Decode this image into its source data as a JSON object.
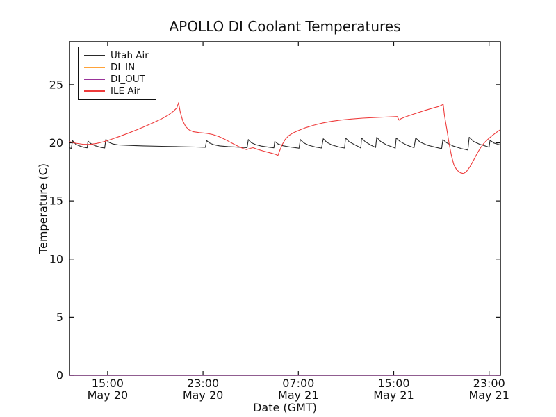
{
  "chart_data": {
    "type": "line",
    "title": "APOLLO DI Coolant Temperatures",
    "xlabel": "Date (GMT)",
    "ylabel": "Temperature (C)",
    "grid": false,
    "legend_position": "upper left",
    "axis_color": "#111111",
    "xlim_hours_from_may20_0000": [
      11.8,
      47.95
    ],
    "ylim": [
      0,
      28.7
    ],
    "y_ticks": [
      0,
      5,
      10,
      15,
      20,
      25
    ],
    "x_ticks": [
      {
        "hours": 15,
        "time": "15:00",
        "date": "May 20"
      },
      {
        "hours": 23,
        "time": "23:00",
        "date": "May 20"
      },
      {
        "hours": 31,
        "time": "07:00",
        "date": "May 21"
      },
      {
        "hours": 39,
        "time": "15:00",
        "date": "May 21"
      },
      {
        "hours": 47,
        "time": "23:00",
        "date": "May 21"
      }
    ],
    "series": [
      {
        "name": "Utah Air",
        "color": "#2a2a2a",
        "points": [
          [
            11.8,
            19.6
          ],
          [
            11.95,
            19.5
          ],
          [
            12.05,
            20.2
          ],
          [
            12.3,
            19.9
          ],
          [
            12.6,
            19.75
          ],
          [
            12.95,
            19.63
          ],
          [
            13.28,
            19.57
          ],
          [
            13.35,
            20.15
          ],
          [
            13.6,
            19.92
          ],
          [
            13.95,
            19.75
          ],
          [
            14.4,
            19.62
          ],
          [
            14.75,
            19.55
          ],
          [
            14.85,
            20.3
          ],
          [
            15.1,
            20.05
          ],
          [
            15.45,
            19.9
          ],
          [
            15.9,
            19.82
          ],
          [
            16.8,
            19.78
          ],
          [
            18.0,
            19.74
          ],
          [
            19.5,
            19.7
          ],
          [
            21.0,
            19.67
          ],
          [
            22.4,
            19.64
          ],
          [
            23.2,
            19.62
          ],
          [
            23.3,
            20.2
          ],
          [
            23.55,
            19.98
          ],
          [
            23.9,
            19.84
          ],
          [
            24.4,
            19.74
          ],
          [
            25.1,
            19.68
          ],
          [
            25.9,
            19.63
          ],
          [
            26.7,
            19.58
          ],
          [
            26.8,
            20.28
          ],
          [
            27.05,
            20.02
          ],
          [
            27.4,
            19.85
          ],
          [
            27.9,
            19.72
          ],
          [
            28.5,
            19.63
          ],
          [
            28.95,
            19.57
          ],
          [
            29.02,
            20.12
          ],
          [
            29.3,
            19.9
          ],
          [
            29.7,
            19.75
          ],
          [
            30.3,
            19.64
          ],
          [
            30.95,
            19.56
          ],
          [
            31.05,
            19.53
          ],
          [
            31.17,
            20.28
          ],
          [
            31.45,
            20.0
          ],
          [
            31.85,
            19.8
          ],
          [
            32.4,
            19.65
          ],
          [
            32.95,
            19.55
          ],
          [
            33.09,
            20.35
          ],
          [
            33.38,
            20.05
          ],
          [
            33.8,
            19.82
          ],
          [
            34.4,
            19.65
          ],
          [
            34.88,
            19.55
          ],
          [
            34.96,
            20.42
          ],
          [
            35.25,
            20.1
          ],
          [
            35.7,
            19.85
          ],
          [
            36.15,
            19.62
          ],
          [
            36.24,
            19.55
          ],
          [
            36.3,
            20.42
          ],
          [
            36.6,
            20.1
          ],
          [
            37.05,
            19.82
          ],
          [
            37.48,
            19.6
          ],
          [
            37.58,
            20.48
          ],
          [
            37.9,
            20.12
          ],
          [
            38.4,
            19.82
          ],
          [
            39.05,
            19.58
          ],
          [
            39.13,
            19.52
          ],
          [
            39.21,
            20.42
          ],
          [
            39.55,
            20.1
          ],
          [
            40.1,
            19.8
          ],
          [
            40.7,
            19.58
          ],
          [
            40.84,
            20.42
          ],
          [
            41.2,
            20.08
          ],
          [
            41.8,
            19.8
          ],
          [
            42.6,
            19.6
          ],
          [
            43.02,
            19.5
          ],
          [
            43.12,
            20.28
          ],
          [
            43.45,
            20.0
          ],
          [
            44.0,
            19.72
          ],
          [
            44.7,
            19.5
          ],
          [
            45.22,
            19.38
          ],
          [
            45.33,
            20.48
          ],
          [
            45.7,
            20.12
          ],
          [
            46.2,
            19.88
          ],
          [
            46.9,
            19.66
          ],
          [
            47.0,
            19.62
          ],
          [
            47.08,
            20.22
          ],
          [
            47.4,
            19.98
          ],
          [
            47.93,
            19.82
          ]
        ]
      },
      {
        "name": "DI_IN",
        "color": "#ffa33a",
        "points": [
          [
            11.8,
            0.0
          ],
          [
            47.95,
            0.0
          ]
        ]
      },
      {
        "name": "DI_OUT",
        "color": "#993399",
        "points": [
          [
            11.8,
            0.0
          ],
          [
            47.95,
            0.0
          ]
        ]
      },
      {
        "name": "ILE Air",
        "color": "#ee3b3b",
        "points": [
          [
            11.8,
            20.1
          ],
          [
            12.3,
            19.97
          ],
          [
            12.9,
            19.88
          ],
          [
            13.5,
            19.86
          ],
          [
            14.1,
            19.95
          ],
          [
            14.7,
            20.1
          ],
          [
            15.3,
            20.3
          ],
          [
            16.0,
            20.55
          ],
          [
            16.7,
            20.82
          ],
          [
            17.4,
            21.1
          ],
          [
            18.1,
            21.4
          ],
          [
            18.8,
            21.72
          ],
          [
            19.5,
            22.05
          ],
          [
            20.1,
            22.4
          ],
          [
            20.5,
            22.7
          ],
          [
            20.8,
            23.0
          ],
          [
            20.95,
            23.45
          ],
          [
            21.1,
            22.6
          ],
          [
            21.3,
            21.9
          ],
          [
            21.55,
            21.4
          ],
          [
            21.85,
            21.1
          ],
          [
            22.2,
            20.95
          ],
          [
            22.7,
            20.88
          ],
          [
            23.3,
            20.82
          ],
          [
            23.8,
            20.72
          ],
          [
            24.3,
            20.55
          ],
          [
            24.8,
            20.32
          ],
          [
            25.2,
            20.1
          ],
          [
            25.6,
            19.88
          ],
          [
            26.0,
            19.68
          ],
          [
            26.4,
            19.5
          ],
          [
            26.65,
            19.42
          ],
          [
            26.95,
            19.52
          ],
          [
            27.2,
            19.58
          ],
          [
            27.55,
            19.45
          ],
          [
            28.1,
            19.28
          ],
          [
            28.7,
            19.12
          ],
          [
            29.1,
            19.0
          ],
          [
            29.28,
            18.9
          ],
          [
            29.4,
            19.25
          ],
          [
            29.65,
            19.85
          ],
          [
            29.9,
            20.3
          ],
          [
            30.2,
            20.62
          ],
          [
            30.55,
            20.85
          ],
          [
            31.0,
            21.05
          ],
          [
            31.6,
            21.3
          ],
          [
            32.3,
            21.52
          ],
          [
            33.0,
            21.7
          ],
          [
            33.8,
            21.85
          ],
          [
            34.6,
            21.96
          ],
          [
            35.5,
            22.05
          ],
          [
            36.4,
            22.12
          ],
          [
            37.3,
            22.17
          ],
          [
            38.2,
            22.21
          ],
          [
            39.0,
            22.25
          ],
          [
            39.3,
            22.26
          ],
          [
            39.45,
            21.95
          ],
          [
            39.62,
            22.08
          ],
          [
            39.95,
            22.22
          ],
          [
            40.45,
            22.4
          ],
          [
            41.05,
            22.6
          ],
          [
            41.65,
            22.8
          ],
          [
            42.25,
            22.98
          ],
          [
            42.75,
            23.12
          ],
          [
            43.05,
            23.26
          ],
          [
            43.15,
            23.32
          ],
          [
            43.25,
            22.4
          ],
          [
            43.45,
            21.2
          ],
          [
            43.65,
            19.9
          ],
          [
            43.85,
            18.85
          ],
          [
            44.05,
            18.1
          ],
          [
            44.3,
            17.65
          ],
          [
            44.6,
            17.42
          ],
          [
            44.85,
            17.35
          ],
          [
            45.1,
            17.52
          ],
          [
            45.4,
            17.95
          ],
          [
            45.7,
            18.5
          ],
          [
            46.0,
            19.1
          ],
          [
            46.3,
            19.6
          ],
          [
            46.6,
            20.0
          ],
          [
            46.95,
            20.35
          ],
          [
            47.3,
            20.65
          ],
          [
            47.65,
            20.92
          ],
          [
            47.93,
            21.12
          ]
        ]
      }
    ]
  }
}
